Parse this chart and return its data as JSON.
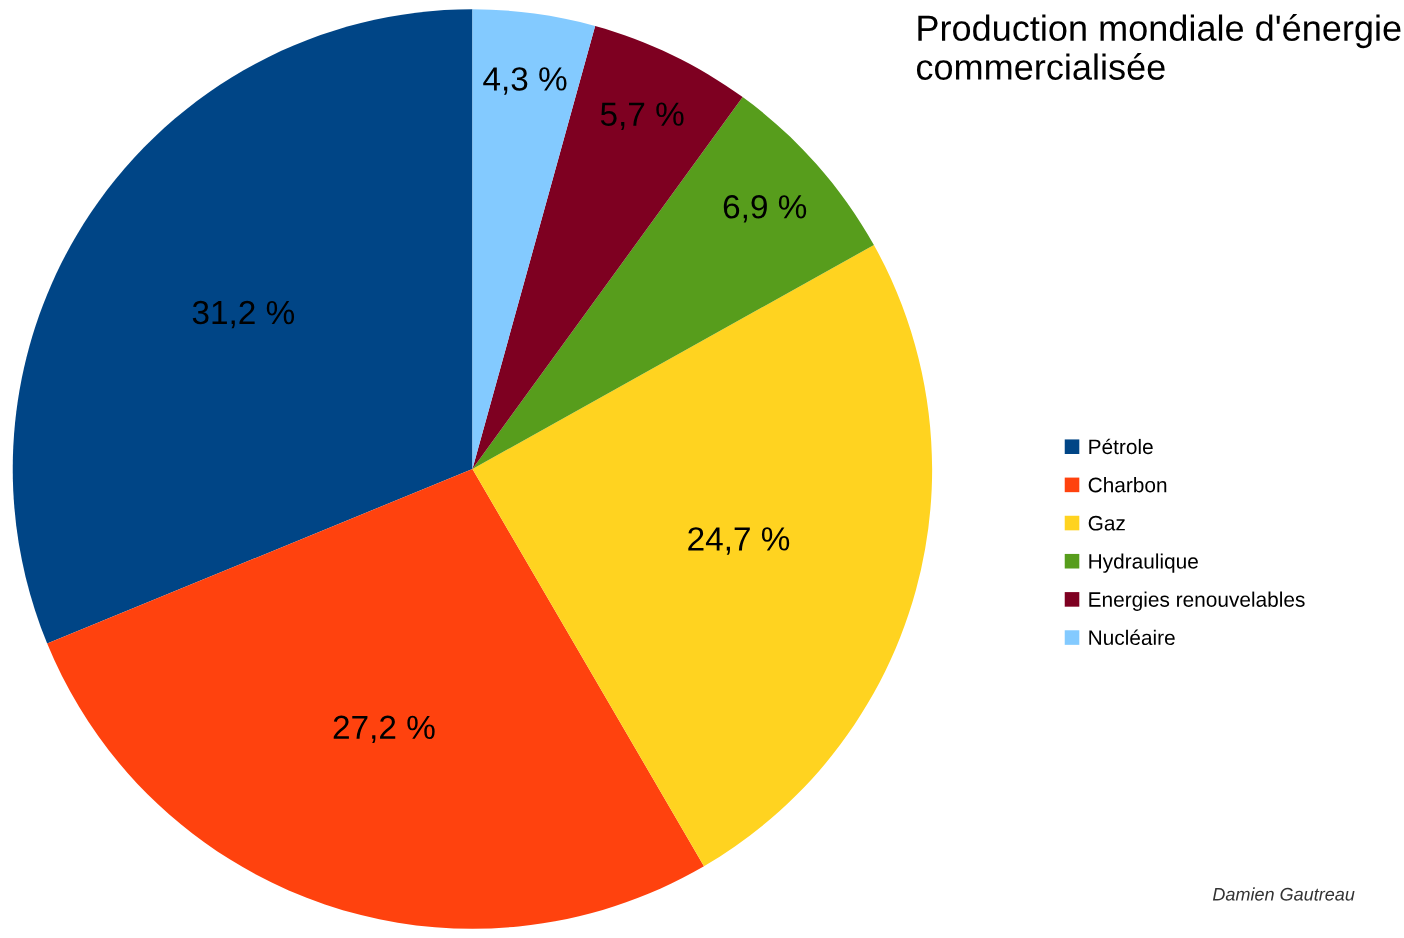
{
  "chart_data": {
    "type": "pie",
    "title": "Production mondiale d'énergie commercialisée",
    "categories": [
      "Pétrole",
      "Charbon",
      "Gaz",
      "Hydraulique",
      "Energies renouvelables",
      "Nucléaire"
    ],
    "values": [
      31.2,
      27.2,
      24.7,
      6.9,
      5.7,
      4.3
    ],
    "colors": [
      "#004586",
      "#ff420e",
      "#ffd320",
      "#579d1c",
      "#7e0021",
      "#83caff"
    ],
    "value_labels": [
      "31,2 %",
      "27,2 %",
      "24,7 %",
      "6,9 %",
      "5,7 %",
      "4,3 %"
    ],
    "legend": "right",
    "annotations": [
      "Damien Gautreau"
    ]
  }
}
